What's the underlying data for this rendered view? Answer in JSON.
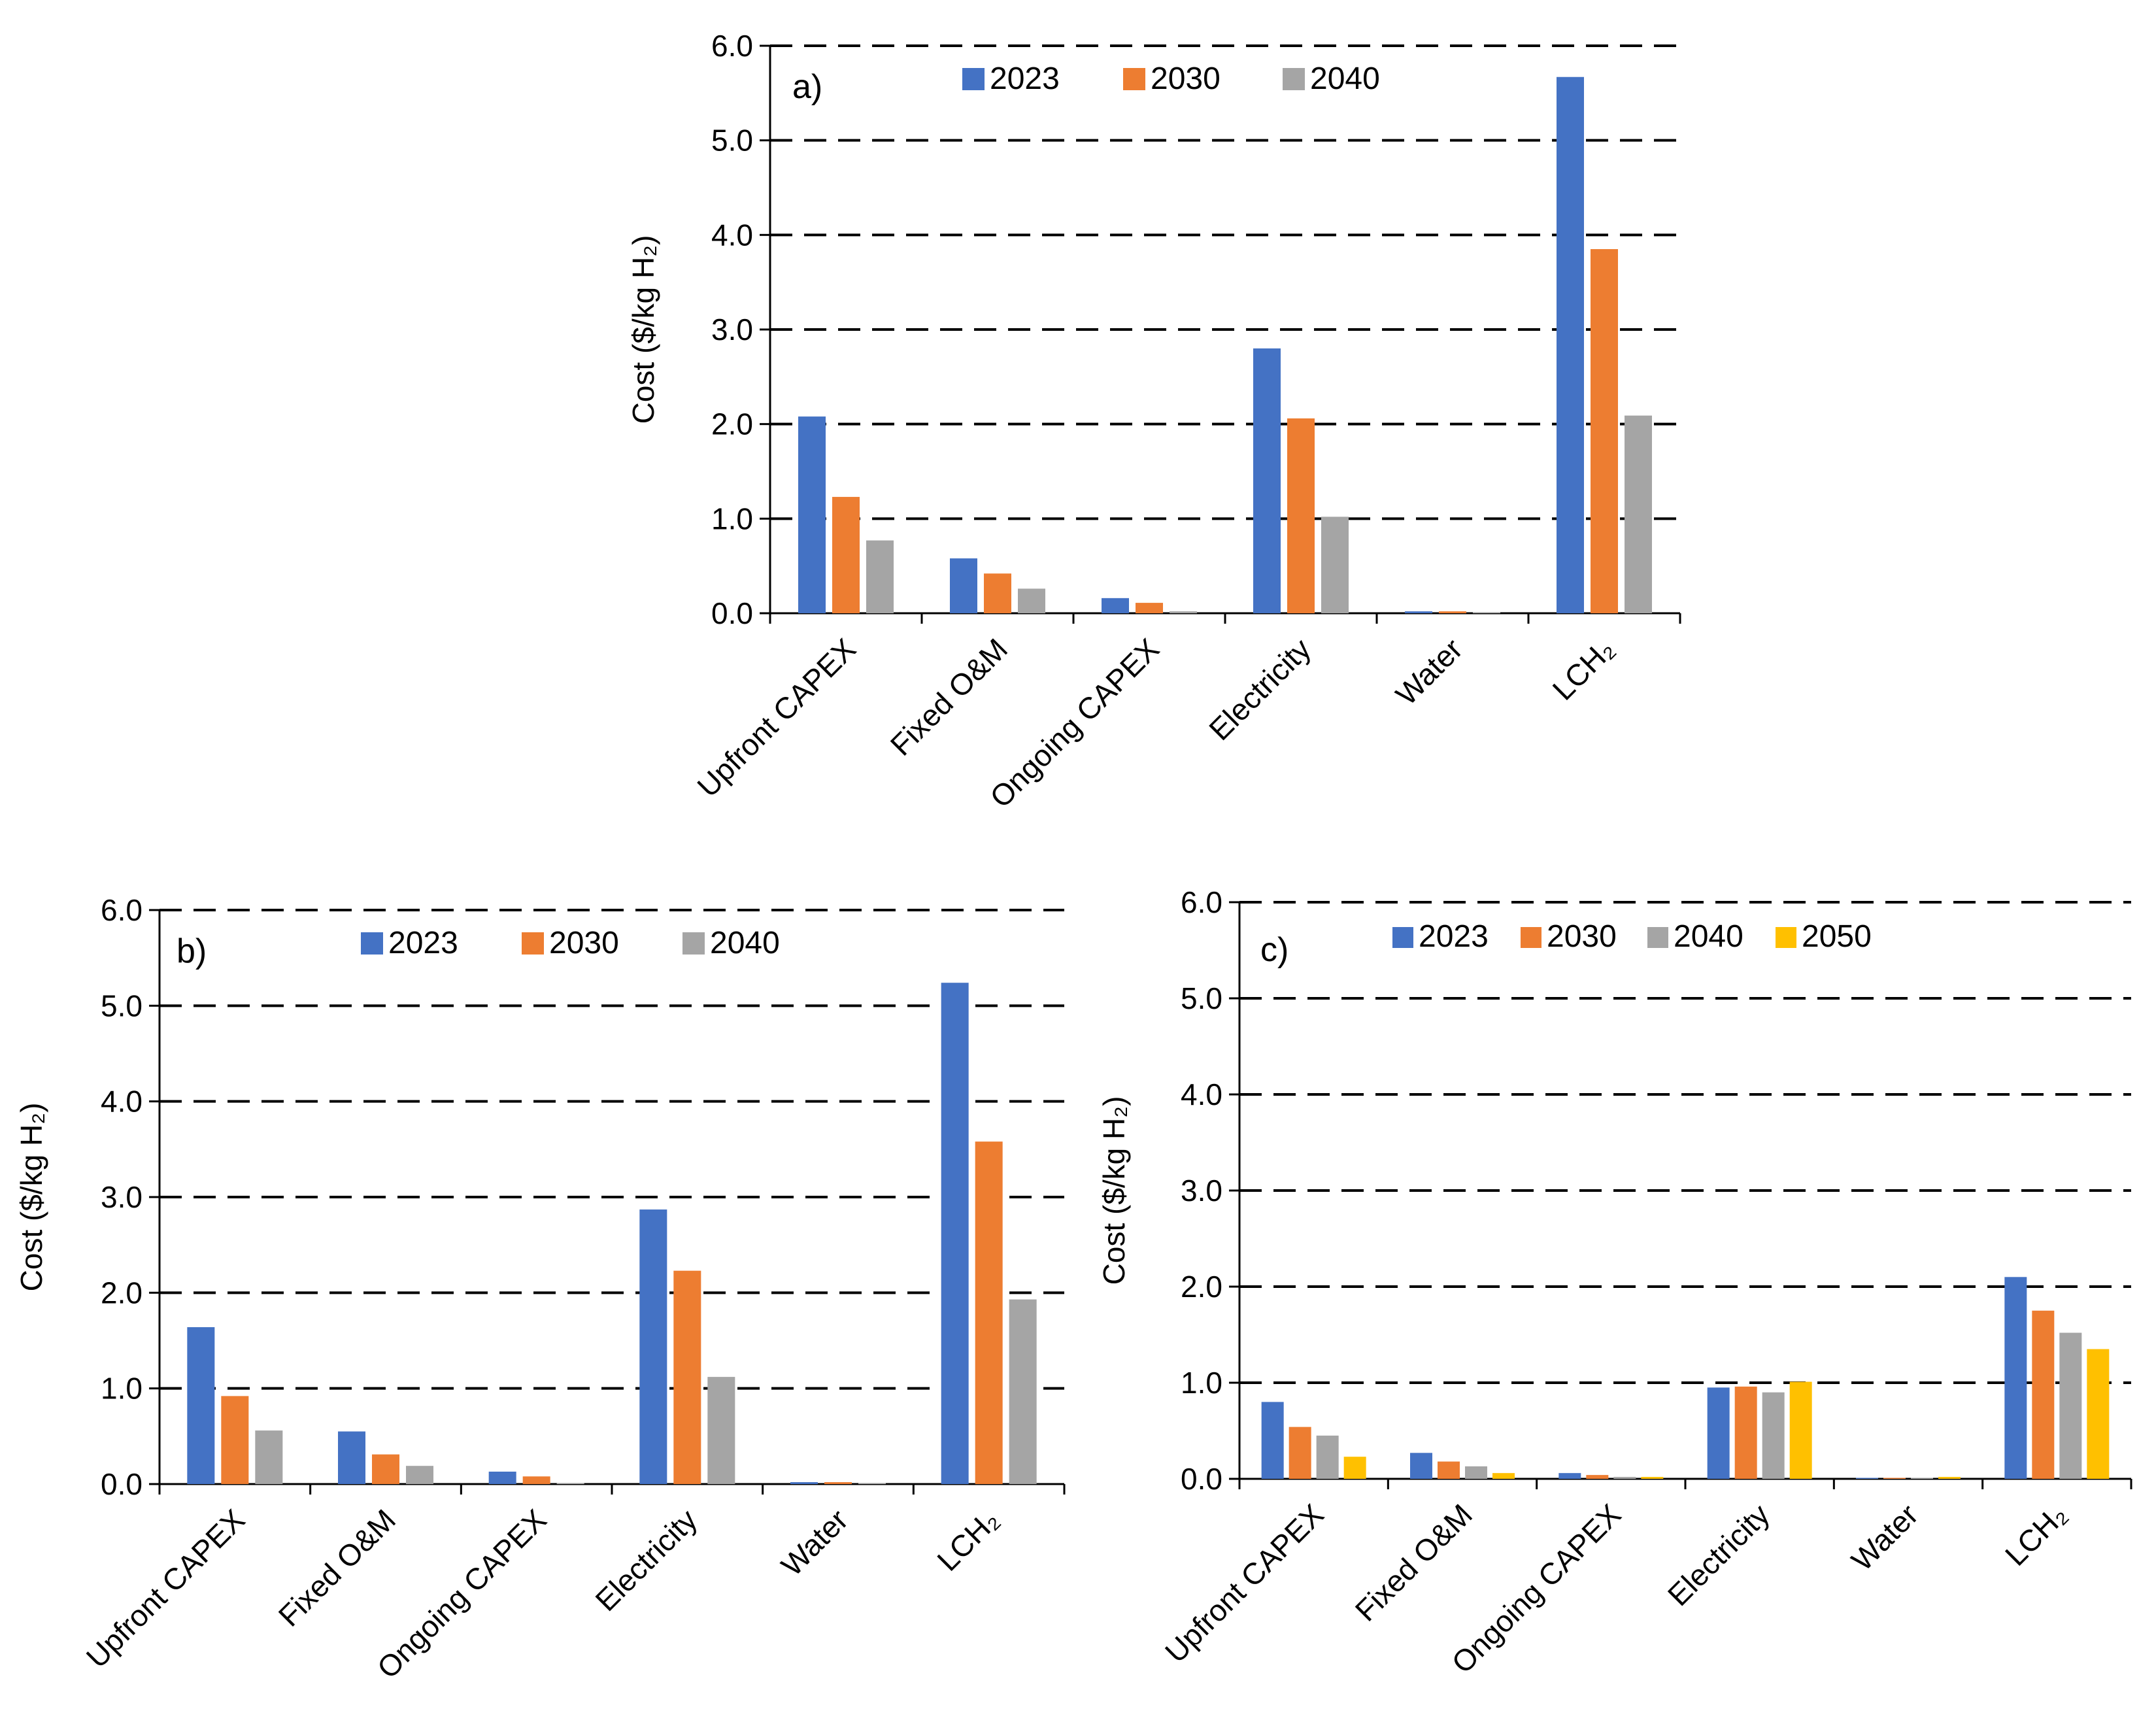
{
  "colors": {
    "s2023": "#4472C4",
    "s2030": "#ED7D31",
    "s2040": "#A5A5A5",
    "s2050": "#FFC000"
  },
  "chart_data": [
    {
      "type": "bar",
      "panel_label": "a)",
      "ylabel": "Cost ($/kg H₂)",
      "ylim": [
        0,
        6
      ],
      "yticks": [
        "0.0",
        "1.0",
        "2.0",
        "3.0",
        "4.0",
        "5.0",
        "6.0"
      ],
      "grid": true,
      "legend_position": "top",
      "categories": [
        "Upfront CAPEX",
        "Fixed O&M",
        "Ongoing CAPEX",
        "Electricity",
        "Water",
        "LCH₂"
      ],
      "series": [
        {
          "name": "2023",
          "color_key": "s2023",
          "values": [
            2.08,
            0.58,
            0.16,
            2.8,
            0.02,
            5.67
          ]
        },
        {
          "name": "2030",
          "color_key": "s2030",
          "values": [
            1.23,
            0.42,
            0.11,
            2.06,
            0.02,
            3.85
          ]
        },
        {
          "name": "2040",
          "color_key": "s2040",
          "values": [
            0.77,
            0.26,
            0.02,
            1.02,
            0.01,
            2.09
          ]
        }
      ]
    },
    {
      "type": "bar",
      "panel_label": "b)",
      "ylabel": "Cost ($/kg H₂)",
      "ylim": [
        0,
        6
      ],
      "yticks": [
        "0.0",
        "1.0",
        "2.0",
        "3.0",
        "4.0",
        "5.0",
        "6.0"
      ],
      "grid": true,
      "legend_position": "top",
      "categories": [
        "Upfront CAPEX",
        "Fixed O&M",
        "Ongoing CAPEX",
        "Electricity",
        "Water",
        "LCH₂"
      ],
      "series": [
        {
          "name": "2023",
          "color_key": "s2023",
          "values": [
            1.64,
            0.55,
            0.13,
            2.87,
            0.02,
            5.24
          ]
        },
        {
          "name": "2030",
          "color_key": "s2030",
          "values": [
            0.92,
            0.31,
            0.08,
            2.23,
            0.02,
            3.58
          ]
        },
        {
          "name": "2040",
          "color_key": "s2040",
          "values": [
            0.56,
            0.19,
            0.01,
            1.12,
            0.01,
            1.93
          ]
        }
      ]
    },
    {
      "type": "bar",
      "panel_label": "c)",
      "ylabel": "Cost ($/kg H₂)",
      "ylim": [
        0,
        6
      ],
      "yticks": [
        "0.0",
        "1.0",
        "2.0",
        "3.0",
        "4.0",
        "5.0",
        "6.0"
      ],
      "grid": true,
      "legend_position": "top",
      "categories": [
        "Upfront CAPEX",
        "Fixed O&M",
        "Ongoing CAPEX",
        "Electricity",
        "Water",
        "LCH₂"
      ],
      "series": [
        {
          "name": "2023",
          "color_key": "s2023",
          "values": [
            0.8,
            0.27,
            0.06,
            0.95,
            0.01,
            2.1
          ]
        },
        {
          "name": "2030",
          "color_key": "s2030",
          "values": [
            0.54,
            0.18,
            0.04,
            0.96,
            0.01,
            1.75
          ]
        },
        {
          "name": "2040",
          "color_key": "s2040",
          "values": [
            0.45,
            0.13,
            0.02,
            0.9,
            0.01,
            1.52
          ]
        },
        {
          "name": "2050",
          "color_key": "s2050",
          "values": [
            0.23,
            0.06,
            0.02,
            1.01,
            0.02,
            1.35
          ]
        }
      ]
    }
  ]
}
